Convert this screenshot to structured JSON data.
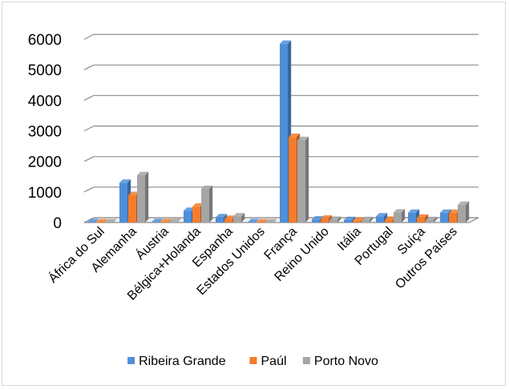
{
  "chart_data": {
    "type": "bar",
    "title": "",
    "xlabel": "",
    "ylabel": "",
    "ylim": [
      0,
      6000
    ],
    "yticks": [
      0,
      1000,
      2000,
      3000,
      4000,
      5000,
      6000
    ],
    "grid": true,
    "legend_position": "bottom",
    "categories": [
      "África do Sul",
      "Alemanha",
      "Áustria",
      "Bélgica+Holanda",
      "Espanha",
      "Estados Unidos",
      "França",
      "Reino Unido",
      "Itália",
      "Portugal",
      "Suíça",
      "Outros Países"
    ],
    "series": [
      {
        "name": "Ribeira Grande",
        "color": "#4f8fd9",
        "values": [
          10,
          1300,
          15,
          380,
          170,
          10,
          5850,
          100,
          80,
          200,
          320,
          320
        ]
      },
      {
        "name": "Paúl",
        "color": "#f57c2b",
        "values": [
          5,
          900,
          10,
          520,
          120,
          5,
          2800,
          130,
          60,
          90,
          160,
          320
        ]
      },
      {
        "name": "Porto Novo",
        "color": "#a5a5a5",
        "values": [
          5,
          1550,
          20,
          1100,
          200,
          5,
          2700,
          90,
          80,
          330,
          80,
          580
        ]
      }
    ]
  }
}
